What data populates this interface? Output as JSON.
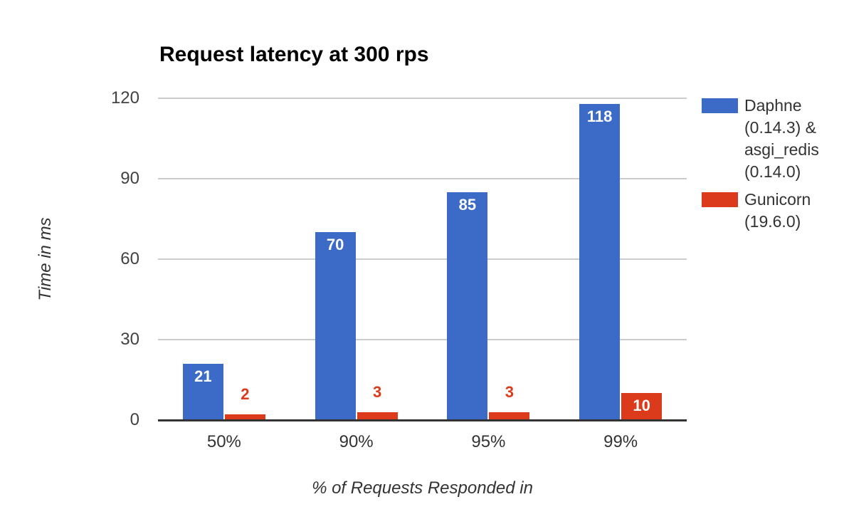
{
  "chart_data": {
    "type": "bar",
    "title": "Request latency at 300 rps",
    "xlabel": "% of Requests Responded in",
    "ylabel": "Time in ms",
    "categories": [
      "50%",
      "90%",
      "95%",
      "99%"
    ],
    "series": [
      {
        "name": "Daphne (0.14.3) & asgi_redis (0.14.0)",
        "legend_lines": [
          "Daphne",
          "(0.14.3) &",
          "asgi_redis",
          "(0.14.0)"
        ],
        "color": "#3C6BC7",
        "values": [
          21,
          70,
          85,
          118
        ]
      },
      {
        "name": "Gunicorn (19.6.0)",
        "legend_lines": [
          "Gunicorn",
          "(19.6.0)"
        ],
        "color": "#DB3A1B",
        "values": [
          2,
          3,
          3,
          10
        ]
      }
    ],
    "ylim": [
      0,
      120
    ],
    "yticks": [
      0,
      30,
      60,
      90,
      120
    ],
    "grid": true,
    "legend_position": "right",
    "annotations": "bar values labeled; white inside tall bars, series-colored above short bars",
    "style": {
      "grid_color": "#cccccc",
      "axis_color": "#333333",
      "tick_label_color": "#424242",
      "title_color": "#000000",
      "annotation_inside_color": "#ffffff",
      "background": "#ffffff"
    }
  }
}
